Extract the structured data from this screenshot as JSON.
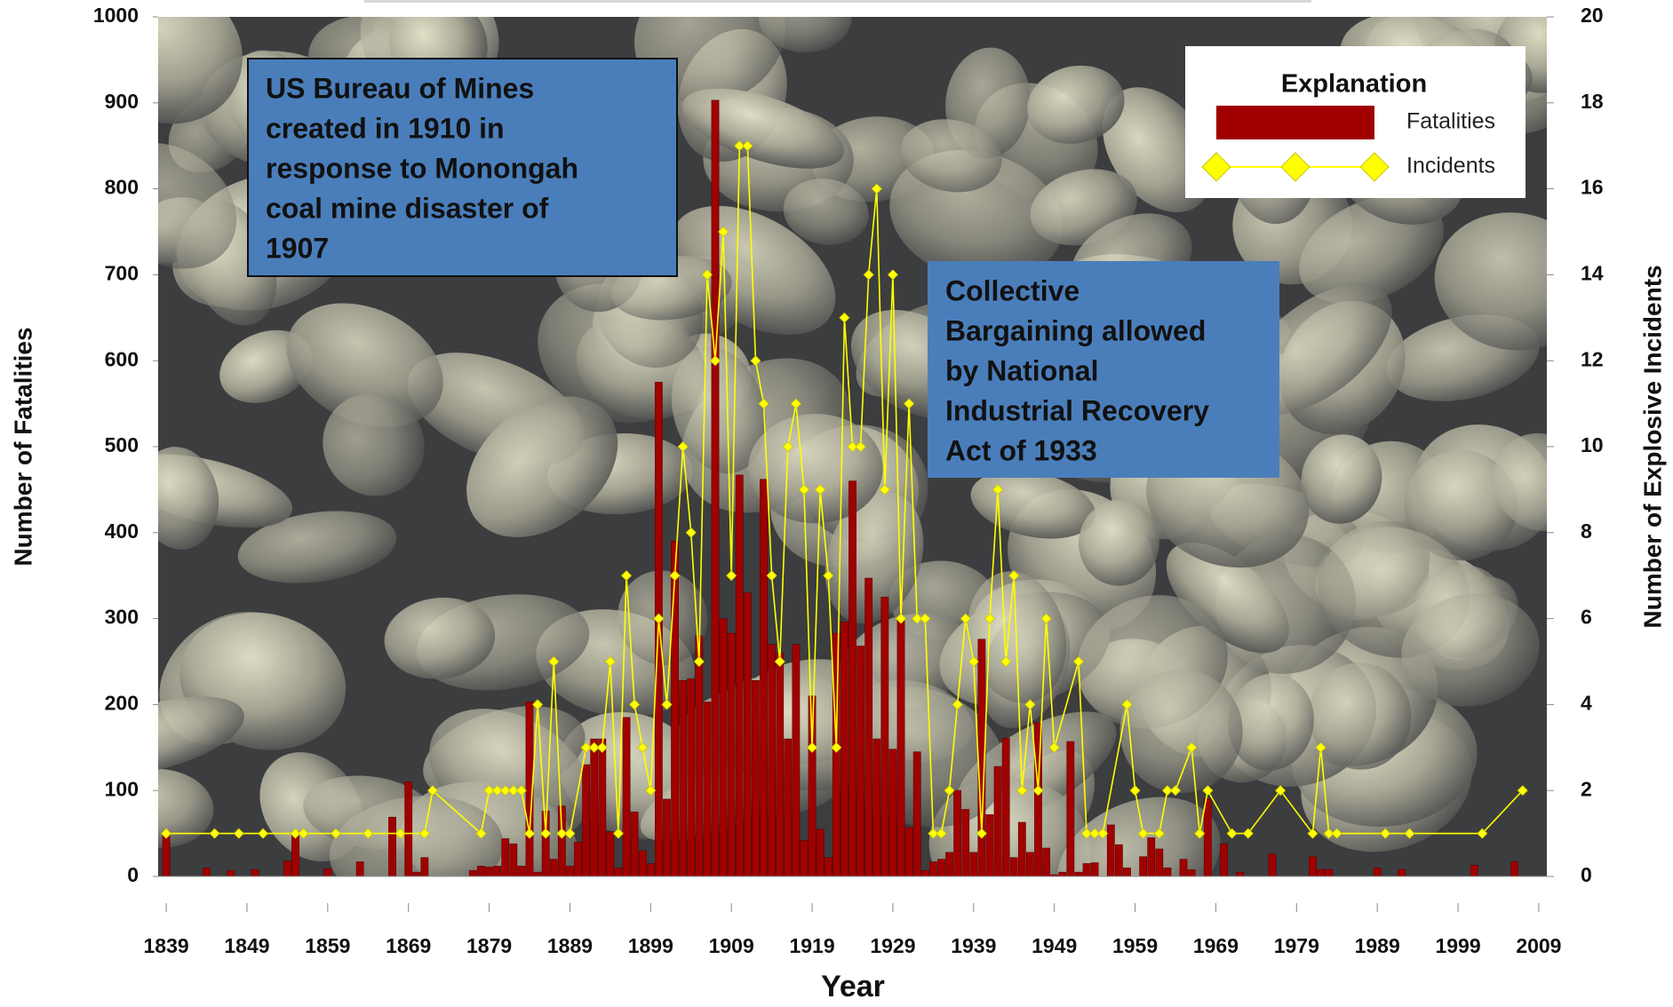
{
  "chart_data": {
    "type": "bar_line",
    "xlabel": "Year",
    "ylabel": "Number of Fatalities",
    "y2label": "Number of Explosive Incidents",
    "xlim": [
      1838,
      2010
    ],
    "xticks": [
      1839,
      1849,
      1859,
      1869,
      1879,
      1889,
      1899,
      1909,
      1919,
      1929,
      1939,
      1949,
      1959,
      1969,
      1979,
      1989,
      1999,
      2009
    ],
    "ylim": [
      0,
      1000
    ],
    "yticks": [
      0,
      100,
      200,
      300,
      400,
      500,
      600,
      700,
      800,
      900,
      1000
    ],
    "y2lim": [
      0,
      20
    ],
    "y2ticks": [
      0,
      2,
      4,
      6,
      8,
      10,
      12,
      14,
      16,
      18,
      20
    ],
    "grid": false,
    "legend": "upper right",
    "legend_title": "Explanation",
    "series": [
      {
        "name": "Fatalities",
        "type": "bar",
        "color": "#a00000",
        "x": [
          1839,
          1844,
          1847,
          1850,
          1854,
          1855,
          1859,
          1863,
          1867,
          1869,
          1870,
          1871,
          1877,
          1878,
          1879,
          1880,
          1881,
          1882,
          1883,
          1884,
          1885,
          1886,
          1887,
          1888,
          1889,
          1890,
          1891,
          1892,
          1893,
          1894,
          1895,
          1896,
          1897,
          1898,
          1899,
          1900,
          1901,
          1902,
          1903,
          1904,
          1905,
          1906,
          1907,
          1908,
          1909,
          1910,
          1911,
          1912,
          1913,
          1914,
          1915,
          1916,
          1917,
          1918,
          1919,
          1920,
          1921,
          1922,
          1923,
          1924,
          1925,
          1926,
          1927,
          1928,
          1929,
          1930,
          1931,
          1932,
          1933,
          1934,
          1935,
          1936,
          1937,
          1938,
          1939,
          1940,
          1941,
          1942,
          1943,
          1944,
          1945,
          1946,
          1947,
          1948,
          1949,
          1950,
          1951,
          1952,
          1953,
          1954,
          1956,
          1957,
          1958,
          1960,
          1961,
          1962,
          1963,
          1965,
          1966,
          1968,
          1970,
          1972,
          1976,
          1981,
          1982,
          1983,
          1989,
          1992,
          2001,
          2006
        ],
        "values": [
          52,
          10,
          7,
          8,
          18,
          52,
          9,
          17,
          69,
          110,
          5,
          22,
          7,
          12,
          11,
          12,
          44,
          38,
          12,
          203,
          5,
          76,
          20,
          82,
          12,
          40,
          130,
          160,
          160,
          52,
          10,
          185,
          75,
          30,
          15,
          575,
          90,
          390,
          228,
          230,
          280,
          203,
          903,
          300,
          283,
          467,
          330,
          228,
          462,
          270,
          260,
          160,
          270,
          42,
          210,
          55,
          22,
          283,
          296,
          460,
          268,
          347,
          160,
          325,
          148,
          300,
          57,
          145,
          7,
          17,
          20,
          28,
          100,
          78,
          28,
          276,
          72,
          128,
          161,
          22,
          63,
          28,
          179,
          33,
          2,
          5,
          157,
          5,
          15,
          16,
          60,
          37,
          10,
          23,
          45,
          32,
          10,
          20,
          8,
          90,
          38,
          5,
          26,
          23,
          8,
          8,
          10,
          8,
          13,
          17
        ]
      },
      {
        "name": "Incidents",
        "type": "line",
        "axis": "y2",
        "color": "#ffff00",
        "x": [
          1839,
          1845,
          1848,
          1851,
          1855,
          1856,
          1860,
          1864,
          1868,
          1871,
          1872,
          1878,
          1879,
          1880,
          1881,
          1882,
          1883,
          1884,
          1885,
          1886,
          1887,
          1888,
          1889,
          1891,
          1892,
          1893,
          1894,
          1895,
          1896,
          1897,
          1898,
          1899,
          1900,
          1901,
          1902,
          1903,
          1904,
          1905,
          1906,
          1907,
          1908,
          1909,
          1910,
          1911,
          1912,
          1913,
          1914,
          1915,
          1916,
          1917,
          1918,
          1919,
          1920,
          1921,
          1922,
          1923,
          1924,
          1925,
          1926,
          1927,
          1928,
          1929,
          1930,
          1931,
          1932,
          1933,
          1934,
          1935,
          1936,
          1937,
          1938,
          1939,
          1940,
          1941,
          1942,
          1943,
          1944,
          1945,
          1946,
          1947,
          1948,
          1949,
          1952,
          1953,
          1954,
          1955,
          1958,
          1959,
          1960,
          1962,
          1963,
          1964,
          1966,
          1967,
          1968,
          1971,
          1973,
          1977,
          1981,
          1982,
          1983,
          1984,
          1990,
          1993,
          2002,
          2007
        ],
        "values": [
          1,
          1,
          1,
          1,
          1,
          1,
          1,
          1,
          1,
          1,
          2,
          1,
          2,
          2,
          2,
          2,
          2,
          1,
          4,
          1,
          5,
          1,
          1,
          3,
          3,
          3,
          5,
          1,
          7,
          4,
          3,
          2,
          6,
          4,
          7,
          10,
          8,
          5,
          14,
          12,
          15,
          7,
          17,
          17,
          12,
          11,
          7,
          5,
          10,
          11,
          9,
          3,
          9,
          7,
          3,
          13,
          10,
          10,
          14,
          16,
          9,
          14,
          6,
          11,
          6,
          6,
          1,
          1,
          2,
          4,
          6,
          5,
          1,
          6,
          9,
          5,
          7,
          2,
          4,
          2,
          6,
          3,
          5,
          1,
          1,
          1,
          4,
          2,
          1,
          1,
          2,
          2,
          3,
          1,
          2,
          1,
          1,
          2,
          1,
          3,
          1,
          1,
          1,
          1,
          1,
          2
        ]
      }
    ],
    "annotations": [
      {
        "lines": [
          "US Bureau of Mines",
          "created in 1910 in",
          "response to  Monongah",
          "coal mine disaster of",
          "1907"
        ]
      },
      {
        "lines": [
          "Collective",
          "Bargaining allowed",
          "by  National",
          "Industrial Recovery",
          "Act of 1933"
        ]
      }
    ]
  }
}
